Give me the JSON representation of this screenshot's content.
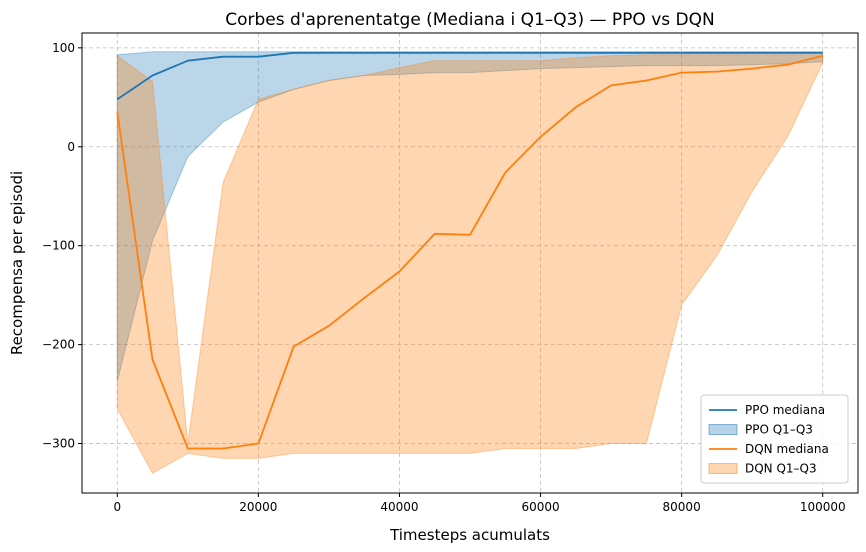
{
  "chart_data": {
    "type": "line",
    "title": "Corbes d'aprenentatge (Mediana i Q1–Q3) — PPO vs DQN",
    "xlabel": "Timesteps acumulats",
    "ylabel": "Recompensa per episodi",
    "xlim": [
      -5000,
      105000
    ],
    "ylim": [
      -350,
      115
    ],
    "xticks": [
      0,
      20000,
      40000,
      60000,
      80000,
      100000
    ],
    "yticks": [
      -300,
      -200,
      -100,
      0,
      100
    ],
    "xtick_labels": [
      "0",
      "20000",
      "40000",
      "60000",
      "80000",
      "100000"
    ],
    "ytick_labels": [
      "−300",
      "−200",
      "−100",
      "0",
      "100"
    ],
    "grid": true,
    "legend_position": "lower-right",
    "x": [
      0,
      5000,
      10000,
      15000,
      20000,
      25000,
      30000,
      35000,
      40000,
      45000,
      50000,
      55000,
      60000,
      65000,
      70000,
      75000,
      80000,
      85000,
      90000,
      95000,
      100000
    ],
    "series": [
      {
        "name": "PPO mediana",
        "kind": "line",
        "color": "#1f77b4",
        "values": [
          48,
          72,
          87,
          91,
          91,
          95,
          95,
          95,
          95,
          95,
          95,
          95,
          95,
          95,
          95,
          95,
          95,
          95,
          95,
          95,
          95
        ]
      },
      {
        "name": "PPO Q1–Q3",
        "kind": "band",
        "color": "#1f77b4",
        "lower": [
          -237,
          -95,
          -10,
          25,
          45,
          58,
          67,
          72,
          73,
          75,
          75,
          77,
          79,
          80,
          81,
          82,
          82,
          82,
          83,
          84,
          86
        ],
        "upper": [
          93,
          96,
          96,
          96,
          96,
          96,
          96,
          96,
          96,
          96,
          96,
          96,
          96,
          96,
          96,
          96,
          96,
          96,
          96,
          96,
          96
        ]
      },
      {
        "name": "DQN mediana",
        "kind": "line",
        "color": "#ff7f0e",
        "values": [
          35,
          -215,
          -305,
          -305,
          -300,
          -202,
          -181,
          -153,
          -126,
          -88,
          -89,
          -26,
          10,
          40,
          62,
          67,
          75,
          76,
          79,
          83,
          92
        ]
      },
      {
        "name": "DQN Q1–Q3",
        "kind": "band",
        "color": "#ff7f0e",
        "lower": [
          -265,
          -330,
          -310,
          -315,
          -315,
          -310,
          -310,
          -310,
          -310,
          -310,
          -310,
          -305,
          -305,
          -305,
          -300,
          -300,
          -160,
          -110,
          -45,
          10,
          85
        ],
        "upper": [
          92,
          66,
          -300,
          -36,
          48,
          58,
          67,
          72,
          80,
          87,
          87,
          87,
          87,
          90,
          92,
          93,
          93,
          93,
          93,
          93,
          93
        ]
      }
    ]
  }
}
